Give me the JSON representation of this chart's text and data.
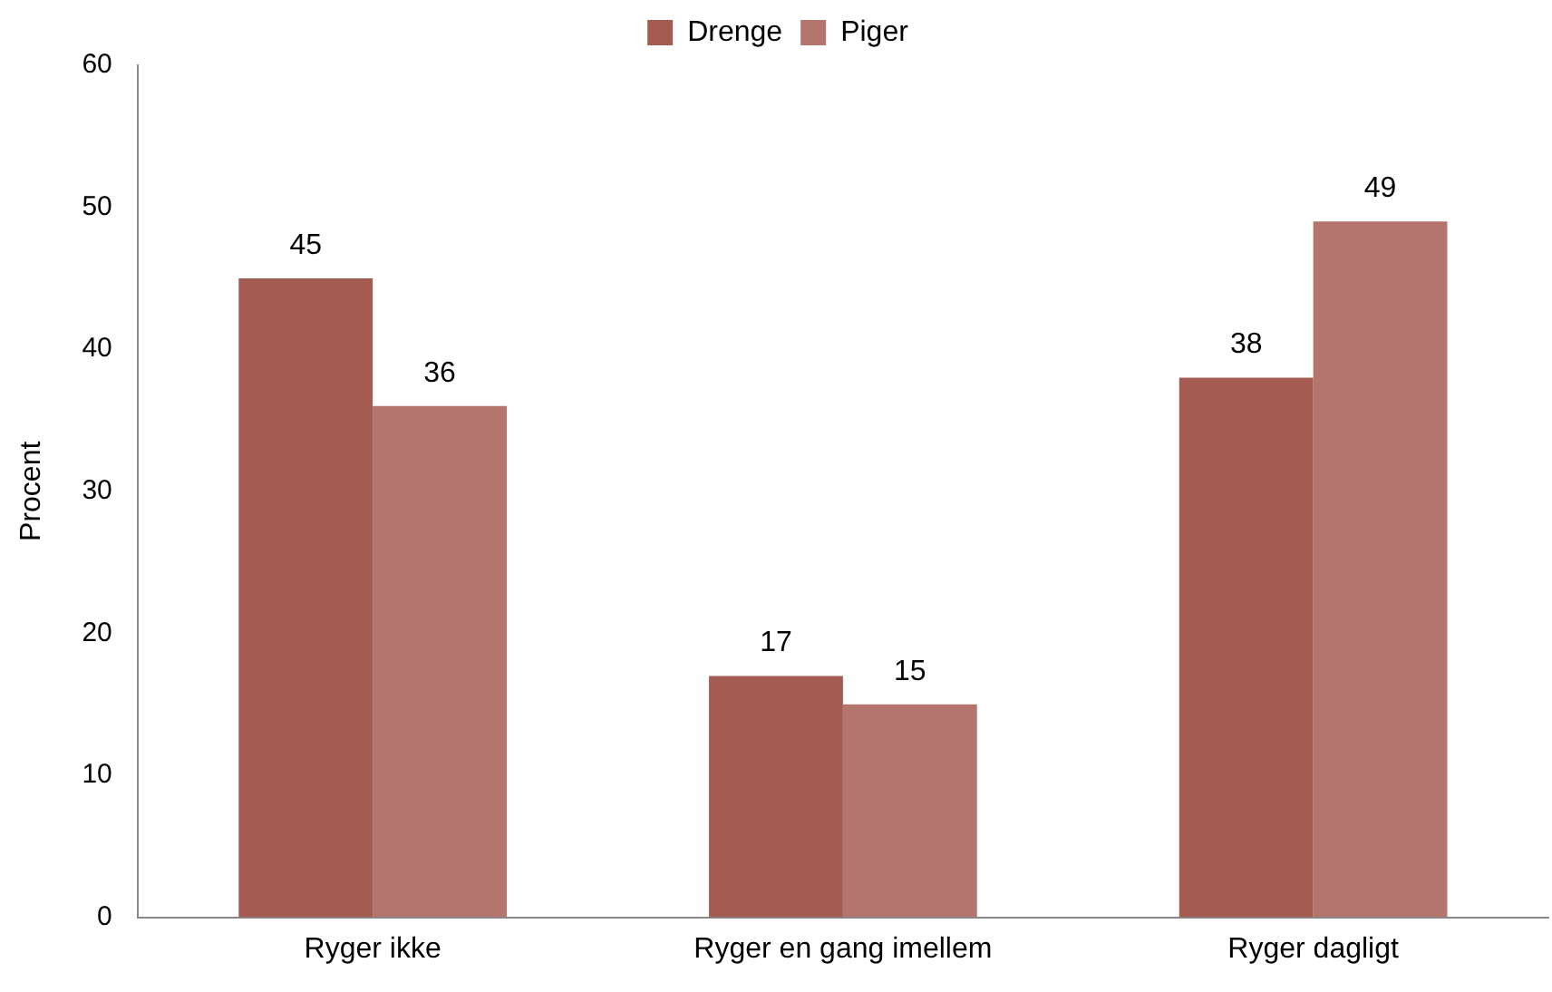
{
  "chart_data": {
    "type": "bar",
    "ylabel": "Procent",
    "categories": [
      "Ryger ikke",
      "Ryger en gang imellem",
      "Ryger dagligt"
    ],
    "series": [
      {
        "name": "Drenge",
        "color": "#a45c52",
        "values": [
          45,
          17,
          38
        ]
      },
      {
        "name": "Piger",
        "color": "#b3756d",
        "values": [
          36,
          15,
          49
        ]
      }
    ],
    "ylim": [
      0,
      60
    ],
    "yticks": [
      0,
      10,
      20,
      30,
      40,
      50,
      60
    ],
    "grid": false,
    "legend": "top",
    "data_labels": true
  }
}
